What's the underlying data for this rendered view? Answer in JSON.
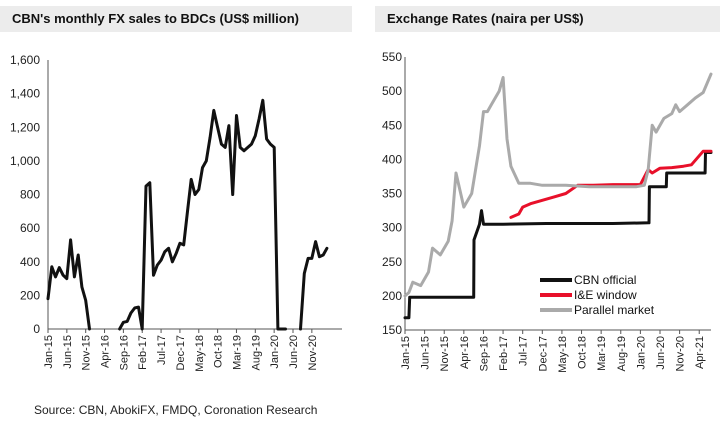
{
  "source": "Source: CBN, AbokiFX, FMDQ, Coronation Research",
  "chart_data": [
    {
      "type": "line",
      "title": "CBN's monthly FX sales to BDCs (US$ million)",
      "ylim": [
        0,
        1600
      ],
      "yticks": [
        "0",
        "200",
        "400",
        "600",
        "800",
        "1,000",
        "1,200",
        "1,400",
        "1,600"
      ],
      "xticks": [
        "Jan-15",
        "Jun-15",
        "Nov-15",
        "Apr-16",
        "Sep-16",
        "Feb-17",
        "Jul-17",
        "Dec-17",
        "May-18",
        "Oct-18",
        "Mar-19",
        "Aug-19",
        "Jan-20",
        "Jun-20",
        "Nov-20"
      ],
      "series": [
        {
          "color": "#111111",
          "segments": [
            {
              "x": [
                "2015-01",
                "2015-02",
                "2015-03",
                "2015-04",
                "2015-05",
                "2015-06",
                "2015-07",
                "2015-08",
                "2015-09",
                "2015-10",
                "2015-11",
                "2015-12"
              ],
              "y": [
                180,
                370,
                310,
                365,
                320,
                300,
                530,
                310,
                440,
                250,
                170,
                0
              ]
            },
            {
              "x": [
                "2016-08",
                "2016-09",
                "2016-10",
                "2016-11",
                "2016-12",
                "2017-01",
                "2017-02",
                "2017-03",
                "2017-04",
                "2017-05",
                "2017-06",
                "2017-07",
                "2017-08",
                "2017-09",
                "2017-10",
                "2017-11",
                "2017-12",
                "2018-01",
                "2018-02",
                "2018-03",
                "2018-04",
                "2018-05",
                "2018-06",
                "2018-07",
                "2018-08",
                "2018-09",
                "2018-10",
                "2018-11",
                "2018-12",
                "2019-01",
                "2019-02",
                "2019-03",
                "2019-04",
                "2019-05",
                "2019-06",
                "2019-07",
                "2019-08",
                "2019-09",
                "2019-10",
                "2019-11",
                "2019-12",
                "2020-01",
                "2020-02",
                "2020-03",
                "2020-04"
              ],
              "y": [
                0,
                40,
                45,
                95,
                125,
                130,
                0,
                850,
                870,
                320,
                380,
                410,
                460,
                480,
                400,
                450,
                510,
                500,
                700,
                890,
                800,
                830,
                960,
                1000,
                1140,
                1300,
                1200,
                1100,
                1080,
                1210,
                800,
                1270,
                1080,
                1060,
                1080,
                1100,
                1150,
                1250,
                1360,
                1130,
                1100,
                1080,
                0,
                0,
                0
              ]
            },
            {
              "x": [
                "2020-08",
                "2020-09",
                "2020-10",
                "2020-11",
                "2020-12",
                "2021-01",
                "2021-02",
                "2021-03"
              ],
              "y": [
                0,
                330,
                420,
                420,
                520,
                430,
                440,
                480
              ]
            }
          ]
        }
      ]
    },
    {
      "type": "line",
      "title": "Exchange Rates (naira per US$)",
      "ylim": [
        150,
        550
      ],
      "yticks": [
        "150",
        "200",
        "250",
        "300",
        "350",
        "400",
        "450",
        "500",
        "550"
      ],
      "xticks": [
        "Jan-15",
        "Jun-15",
        "Nov-15",
        "Apr-16",
        "Sep-16",
        "Feb-17",
        "Jul-17",
        "Dec-17",
        "May-18",
        "Oct-18",
        "Mar-19",
        "Aug-19",
        "Jan-20",
        "Jun-20",
        "Nov-20",
        "Apr-21"
      ],
      "legend": "bottom-right",
      "series": [
        {
          "name": "CBN official",
          "color": "#111111",
          "x": [
            "2015-01",
            "2015-02",
            "2015-02.2",
            "2016-06.5",
            "2016-06.6",
            "2016-08",
            "2016-08.5",
            "2016-09",
            "2017-02",
            "2018-01",
            "2019-06",
            "2020-03.2",
            "2020-03.3",
            "2020-07.6",
            "2020-07.7",
            "2021-05.5",
            "2021-05.6",
            "2021-07"
          ],
          "y": [
            168,
            168,
            198,
            198,
            282,
            305,
            325,
            305,
            305,
            306,
            306,
            307,
            360,
            360,
            380,
            380,
            410,
            410
          ]
        },
        {
          "name": "I&E window",
          "color": "#e8102a",
          "x": [
            "2017-04",
            "2017-06",
            "2017-07",
            "2017-09",
            "2017-12",
            "2018-03",
            "2018-06",
            "2018-09",
            "2019-01",
            "2019-06",
            "2020-01",
            "2020-03",
            "2020-04",
            "2020-06",
            "2020-09",
            "2020-12",
            "2021-02",
            "2021-05",
            "2021-07"
          ],
          "y": [
            315,
            320,
            330,
            335,
            340,
            345,
            350,
            362,
            362,
            363,
            363,
            385,
            380,
            387,
            388,
            390,
            392,
            412,
            412
          ]
        },
        {
          "name": "Parallel market",
          "color": "#aaaaaa",
          "x": [
            "2015-01",
            "2015-02",
            "2015-03",
            "2015-05",
            "2015-07",
            "2015-08",
            "2015-10",
            "2015-12",
            "2016-01",
            "2016-02",
            "2016-04",
            "2016-06",
            "2016-08",
            "2016-09",
            "2016-10",
            "2016-11",
            "2016-12",
            "2017-01",
            "2017-02",
            "2017-03",
            "2017-04",
            "2017-06",
            "2017-09",
            "2017-12",
            "2018-06",
            "2018-12",
            "2019-06",
            "2019-12",
            "2020-02",
            "2020-03",
            "2020-04",
            "2020-05",
            "2020-07",
            "2020-09",
            "2020-10",
            "2020-11",
            "2020-12",
            "2021-01",
            "2021-03",
            "2021-05",
            "2021-07"
          ],
          "y": [
            200,
            205,
            220,
            215,
            235,
            270,
            260,
            280,
            310,
            380,
            330,
            350,
            420,
            470,
            470,
            480,
            490,
            500,
            520,
            430,
            390,
            365,
            365,
            362,
            362,
            360,
            360,
            360,
            362,
            385,
            450,
            440,
            460,
            467,
            480,
            470,
            475,
            480,
            490,
            498,
            525
          ]
        }
      ]
    }
  ]
}
